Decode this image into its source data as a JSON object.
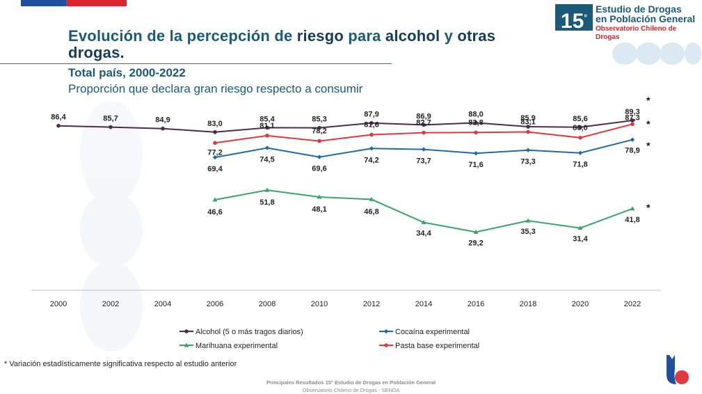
{
  "header": {
    "title_part1": "Evolución de la percepción de",
    "title_part2": "riesgo",
    "title_part3": "para",
    "title_part4": "alcohol",
    "title_part5": "y",
    "title_part6": "otras",
    "title_line2": "drogas.",
    "subtitle": "Total país, 2000-2022",
    "subsubtitle": "Proporción que declara gran riesgo respecto a consumir"
  },
  "logo": {
    "number": "15",
    "sup": "°",
    "line1": "Estudio de Drogas",
    "line2": "en Población General",
    "line3": "Observatorio Chileno de Drogas"
  },
  "chart_data": {
    "type": "line",
    "title": "",
    "xlabel": "",
    "ylabel": "",
    "categories": [
      "2000",
      "2002",
      "2004",
      "2006",
      "2008",
      "2010",
      "2012",
      "2014",
      "2016",
      "2018",
      "2020",
      "2022"
    ],
    "series": [
      {
        "name": "Alcohol (5 o más tragos diarios)",
        "color": "#4e2a53",
        "marker": "circle",
        "label_pos": "above",
        "values": [
          86.4,
          85.7,
          84.9,
          83.0,
          85.4,
          85.3,
          87.9,
          86.9,
          88.0,
          85.9,
          85.6,
          89.3
        ],
        "labels": [
          "86,4",
          "85,7",
          "84,9",
          "83,0",
          "85,4",
          "85,3",
          "87,9",
          "86,9",
          "88,0",
          "85,9",
          "85,6",
          "89,3"
        ]
      },
      {
        "name": "Pasta base experimental",
        "color": "#e0383f",
        "marker": "circle",
        "label_pos": "mixed",
        "values": [
          null,
          null,
          null,
          77.2,
          81.1,
          78.2,
          81.6,
          82.7,
          82.8,
          83.1,
          80.0,
          87.3
        ],
        "labels": [
          null,
          null,
          null,
          "77,2",
          "81,1",
          "78,2",
          "81,6",
          "82,7",
          "82,8",
          "83,1",
          "80,0",
          "87,3"
        ]
      },
      {
        "name": "Cocaína experimental",
        "color": "#1f6aa8",
        "marker": "diamond",
        "label_pos": "below",
        "values": [
          null,
          null,
          null,
          69.4,
          74.5,
          69.6,
          74.2,
          73.7,
          71.6,
          73.3,
          71.8,
          78.9
        ],
        "labels": [
          null,
          null,
          null,
          "69,4",
          "74,5",
          "69,6",
          "74,2",
          "73,7",
          "71,6",
          "73,3",
          "71,8",
          "78,9"
        ]
      },
      {
        "name": "Marihuana experimental",
        "color": "#3aa569",
        "marker": "triangle",
        "label_pos": "mixed",
        "values": [
          null,
          null,
          null,
          46.6,
          51.8,
          48.1,
          46.8,
          34.4,
          29.2,
          35.3,
          31.4,
          41.8
        ],
        "labels": [
          null,
          null,
          null,
          "46,6",
          "51,8",
          "48,1",
          "46,8",
          "34,4",
          "29,2",
          "35,3",
          "31,4",
          "41,8"
        ]
      }
    ],
    "significance_marker": "*",
    "legend_position": "bottom",
    "grid": false
  },
  "footnote": "* Variación estadísticamente significativa respecto al estudio anterior",
  "footer": {
    "line1": "Principales Resultados 15° Estudio de Drogas en Población General",
    "line2": "Observatorio Chileno de Drogas - SENDA"
  },
  "colors": {
    "title": "#1b5a78",
    "flag_blue": "#1f4f9c",
    "flag_red": "#d8262e"
  }
}
